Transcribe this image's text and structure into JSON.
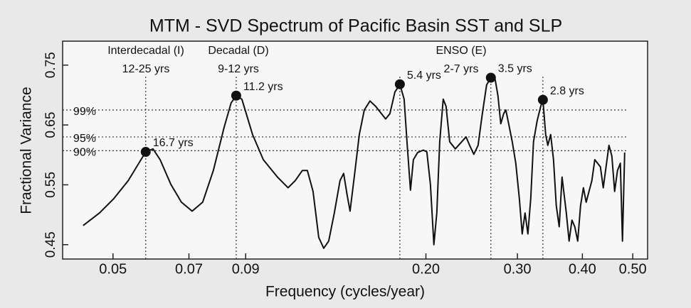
{
  "chart_data": {
    "type": "line",
    "title": "MTM - SVD Spectrum of Pacific Basin SST and SLP",
    "x_label": "Frequency (cycles/year)",
    "y_label": "Fractional Variance",
    "xscale": "log",
    "xlim": [
      0.04,
      0.534
    ],
    "ylim": [
      0.426,
      0.79
    ],
    "xticks": [
      0.05,
      0.07,
      0.09,
      {
        "value": 0.2,
        "label": "0.20"
      },
      {
        "value": 0.3,
        "label": "0.30"
      },
      {
        "value": 0.4,
        "label": "0.40"
      },
      {
        "value": 0.5,
        "label": "0.50"
      }
    ],
    "yticks": [
      0.45,
      0.55,
      0.65,
      0.75
    ],
    "series": [
      {
        "color": "#111111",
        "x": [
          0.0438,
          0.0471,
          0.0502,
          0.0535,
          0.0578,
          0.0597,
          0.0616,
          0.0646,
          0.0677,
          0.071,
          0.0744,
          0.078,
          0.0818,
          0.0844,
          0.0863,
          0.0885,
          0.0928,
          0.0973,
          0.1036,
          0.1086,
          0.1121,
          0.1157,
          0.1183,
          0.1213,
          0.1244,
          0.1272,
          0.13,
          0.1333,
          0.1367,
          0.1389,
          0.1411,
          0.1429,
          0.1456,
          0.1489,
          0.1522,
          0.1561,
          0.1601,
          0.1673,
          0.1705,
          0.1743,
          0.1782,
          0.1816,
          0.1839,
          0.1868,
          0.1892,
          0.1928,
          0.1977,
          0.2008,
          0.204,
          0.2072,
          0.2099,
          0.2126,
          0.2159,
          0.2187,
          0.2222,
          0.2278,
          0.2389,
          0.2427,
          0.2473,
          0.252,
          0.2568,
          0.2617,
          0.2667,
          0.2718,
          0.2752,
          0.2787,
          0.2823,
          0.285,
          0.2886,
          0.2932,
          0.2978,
          0.3026,
          0.3064,
          0.3103,
          0.3142,
          0.3182,
          0.3222,
          0.3274,
          0.3326,
          0.3358,
          0.34,
          0.3432,
          0.3476,
          0.352,
          0.3564,
          0.361,
          0.3656,
          0.3725,
          0.3772,
          0.382,
          0.3868,
          0.3918,
          0.3968,
          0.4018,
          0.4068,
          0.4172,
          0.4226,
          0.4333,
          0.4388,
          0.45,
          0.4558,
          0.4615,
          0.4674,
          0.4733,
          0.4778,
          0.4824
        ],
        "values": [
          0.482,
          0.503,
          0.527,
          0.557,
          0.605,
          0.61,
          0.592,
          0.551,
          0.521,
          0.506,
          0.521,
          0.574,
          0.646,
          0.687,
          0.699,
          0.693,
          0.634,
          0.592,
          0.563,
          0.545,
          0.557,
          0.574,
          0.574,
          0.539,
          0.462,
          0.444,
          0.456,
          0.503,
          0.557,
          0.569,
          0.533,
          0.506,
          0.563,
          0.634,
          0.675,
          0.69,
          0.681,
          0.66,
          0.669,
          0.705,
          0.718,
          0.693,
          0.622,
          0.541,
          0.592,
          0.604,
          0.608,
          0.605,
          0.551,
          0.45,
          0.503,
          0.622,
          0.693,
          0.681,
          0.622,
          0.61,
          0.63,
          0.616,
          0.601,
          0.616,
          0.669,
          0.717,
          0.729,
          0.726,
          0.699,
          0.652,
          0.669,
          0.675,
          0.652,
          0.622,
          0.586,
          0.527,
          0.468,
          0.503,
          0.468,
          0.527,
          0.622,
          0.657,
          0.681,
          0.692,
          0.634,
          0.616,
          0.634,
          0.592,
          0.515,
          0.48,
          0.563,
          0.503,
          0.456,
          0.491,
          0.48,
          0.456,
          0.515,
          0.545,
          0.521,
          0.557,
          0.592,
          0.58,
          0.545,
          0.616,
          0.598,
          0.539,
          0.574,
          0.586,
          0.456,
          0.604
        ]
      }
    ],
    "peaks": [
      {
        "label": "16.7 yrs",
        "x": 0.0578,
        "y": 0.605
      },
      {
        "label": "11.2 yrs",
        "x": 0.0863,
        "y": 0.699
      },
      {
        "label": "5.4 yrs",
        "x": 0.1782,
        "y": 0.718
      },
      {
        "label": "3.5 yrs",
        "x": 0.2667,
        "y": 0.729
      },
      {
        "label": "2.8 yrs",
        "x": 0.3358,
        "y": 0.692
      }
    ],
    "significance": [
      {
        "label": "99%",
        "value": 0.675
      },
      {
        "label": "95%",
        "value": 0.63
      },
      {
        "label": "90%",
        "value": 0.607
      }
    ],
    "annotations": [
      {
        "title": "Interdecadal (I)",
        "range": "12-25 yrs"
      },
      {
        "title": "Decadal (D)",
        "range": "9-12 yrs"
      },
      {
        "title": "ENSO (E)",
        "range": "2-7 yrs"
      }
    ]
  }
}
